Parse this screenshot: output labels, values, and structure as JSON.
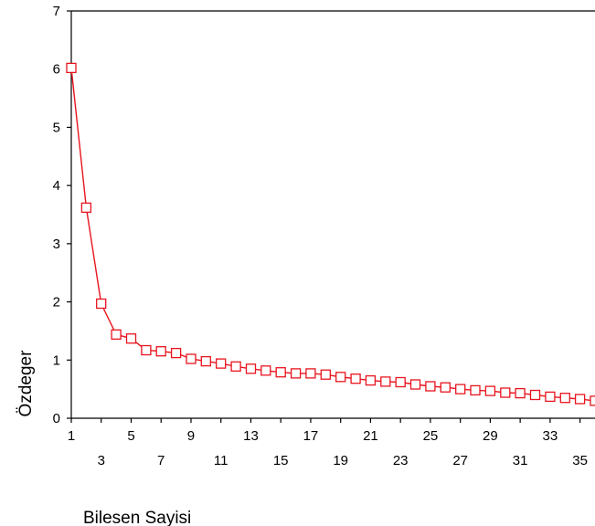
{
  "chart_data": {
    "type": "line",
    "xlabel": "Bilesen Sayisi",
    "ylabel": "Özdeger",
    "x": [
      1,
      2,
      3,
      4,
      5,
      6,
      7,
      8,
      9,
      10,
      11,
      12,
      13,
      14,
      15,
      16,
      17,
      18,
      19,
      20,
      21,
      22,
      23,
      24,
      25,
      26,
      27,
      28,
      29,
      30,
      31,
      32,
      33,
      34,
      35,
      36
    ],
    "series": [
      {
        "values": [
          6.02,
          3.62,
          1.97,
          1.44,
          1.37,
          1.17,
          1.15,
          1.12,
          1.02,
          0.98,
          0.94,
          0.89,
          0.85,
          0.82,
          0.79,
          0.77,
          0.77,
          0.75,
          0.71,
          0.68,
          0.65,
          0.63,
          0.62,
          0.58,
          0.55,
          0.53,
          0.5,
          0.48,
          0.47,
          0.44,
          0.43,
          0.4,
          0.37,
          0.35,
          0.33,
          0.3
        ],
        "color": "#e8141e",
        "marker": "square"
      }
    ],
    "ylim": [
      0,
      7
    ],
    "xlim": [
      1,
      36
    ],
    "yticks": [
      0,
      1,
      2,
      3,
      4,
      5,
      6,
      7
    ],
    "xticks_row1": [
      1,
      5,
      9,
      13,
      17,
      21,
      25,
      29,
      33
    ],
    "xticks_row2": [
      3,
      7,
      11,
      15,
      19,
      23,
      27,
      31,
      35
    ],
    "grid": false,
    "legend": "none"
  }
}
